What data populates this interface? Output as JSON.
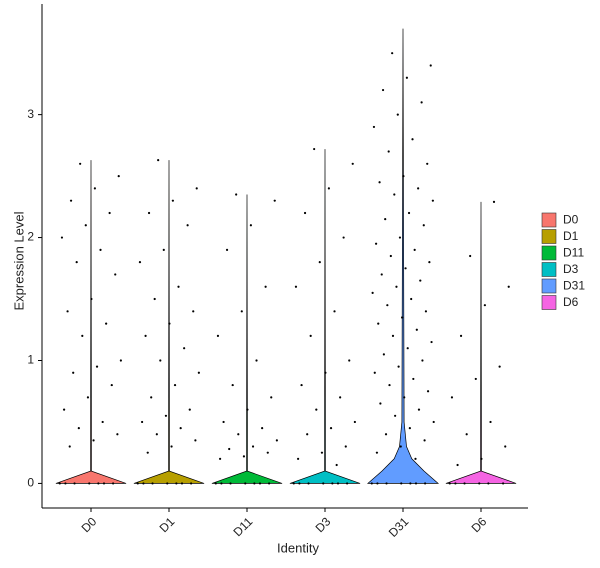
{
  "chart_data": {
    "type": "violin",
    "x_label": "Identity",
    "y_label": "Expression Level",
    "categories": [
      "D0",
      "D1",
      "D11",
      "D3",
      "D31",
      "D6"
    ],
    "colors": [
      "#F8766D",
      "#B79F00",
      "#00BA38",
      "#00BFC4",
      "#619CFF",
      "#F564E3"
    ],
    "ylim": [
      -0.2,
      3.9
    ],
    "yticks": [
      0,
      1,
      2,
      3
    ],
    "max": [
      2.63,
      2.63,
      2.35,
      2.72,
      3.7,
      2.29
    ],
    "density_at": [
      0,
      0.1,
      0.2,
      0.3,
      0.5
    ],
    "density": [
      [
        1,
        0.01,
        0.01,
        0.01,
        0.01
      ],
      [
        1,
        0.01,
        0.01,
        0.01,
        0.01
      ],
      [
        1,
        0.01,
        0.01,
        0.01,
        0.01
      ],
      [
        1,
        0.01,
        0.01,
        0.01,
        0.01
      ],
      [
        1,
        0.6,
        0.25,
        0.1,
        0.03
      ],
      [
        1,
        0.01,
        0.01,
        0.01,
        0.01
      ]
    ],
    "points": [
      [
        0,
        0,
        0,
        0,
        0,
        0,
        0,
        2.6,
        2.5,
        2.4,
        2.3,
        2.2,
        2.1,
        2.0,
        1.9,
        1.8,
        1.7,
        1.5,
        1.4,
        1.3,
        1.2,
        1.0,
        0.95,
        0.9,
        0.8,
        0.7,
        0.6,
        0.5,
        0.45,
        0.4,
        0.35,
        0.3
      ],
      [
        0,
        0,
        0,
        0,
        0,
        0,
        0,
        2.63,
        2.4,
        2.3,
        2.2,
        2.1,
        1.9,
        1.8,
        1.6,
        1.5,
        1.4,
        1.3,
        1.2,
        1.1,
        1.0,
        0.9,
        0.8,
        0.7,
        0.6,
        0.55,
        0.5,
        0.45,
        0.4,
        0.35,
        0.3,
        0.25
      ],
      [
        0,
        0,
        0,
        0,
        0,
        0,
        0,
        2.35,
        2.3,
        2.1,
        1.9,
        1.6,
        1.4,
        1.2,
        1.0,
        0.8,
        0.7,
        0.6,
        0.5,
        0.45,
        0.4,
        0.35,
        0.3,
        0.28,
        0.25,
        0.22,
        0.2
      ],
      [
        0,
        0,
        0,
        0,
        0,
        0,
        0,
        2.72,
        2.6,
        2.4,
        2.2,
        2.0,
        1.8,
        1.6,
        1.4,
        1.2,
        1.0,
        0.9,
        0.8,
        0.7,
        0.6,
        0.5,
        0.45,
        0.4,
        0.3,
        0.25,
        0.2,
        0.15
      ],
      [
        0,
        0,
        0,
        0,
        0,
        0,
        0,
        3.5,
        3.4,
        3.3,
        3.2,
        3.1,
        3.0,
        2.9,
        2.8,
        2.7,
        2.6,
        2.5,
        2.45,
        2.4,
        2.35,
        2.3,
        2.2,
        2.15,
        2.1,
        2.0,
        1.95,
        1.9,
        1.85,
        1.8,
        1.75,
        1.7,
        1.65,
        1.6,
        1.55,
        1.5,
        1.45,
        1.4,
        1.35,
        1.3,
        1.25,
        1.2,
        1.15,
        1.1,
        1.05,
        1.0,
        0.95,
        0.9,
        0.85,
        0.8,
        0.75,
        0.7,
        0.65,
        0.6,
        0.55,
        0.5,
        0.45,
        0.4,
        0.35,
        0.3,
        0.25,
        0.2
      ],
      [
        0,
        0,
        0,
        0,
        0,
        0,
        2.29,
        1.85,
        1.6,
        1.45,
        1.2,
        0.95,
        0.85,
        0.7,
        0.5,
        0.4,
        0.3,
        0.2,
        0.15
      ]
    ],
    "legend": "right"
  }
}
